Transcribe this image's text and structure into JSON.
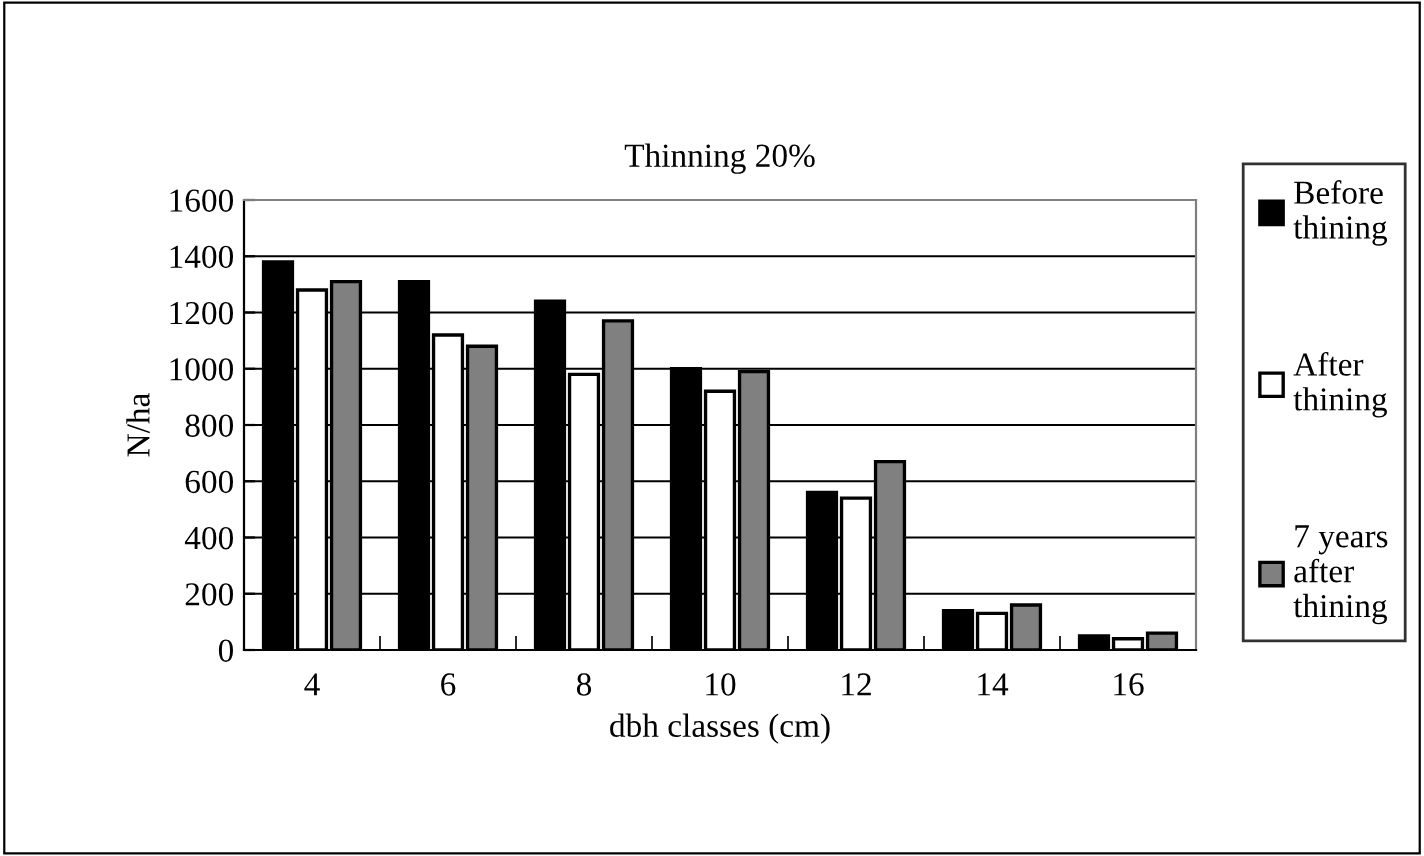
{
  "chart_data": {
    "type": "bar",
    "title": "Thinning 20%",
    "xlabel": "dbh classes (cm)",
    "ylabel": "N/ha",
    "categories": [
      "4",
      "6",
      "8",
      "10",
      "12",
      "14",
      "16"
    ],
    "series": [
      {
        "name": "Before\nthining",
        "color": "#000000",
        "values": [
          1380,
          1310,
          1240,
          1000,
          560,
          140,
          50
        ]
      },
      {
        "name": "After\nthining",
        "color": "#ffffff",
        "values": [
          1280,
          1120,
          980,
          920,
          540,
          130,
          40
        ]
      },
      {
        "name": "7 years\nafter\nthining",
        "color": "#808080",
        "values": [
          1310,
          1080,
          1170,
          990,
          670,
          160,
          60
        ]
      }
    ],
    "ylim": [
      0,
      1600
    ],
    "yticks": [
      0,
      200,
      400,
      600,
      800,
      1000,
      1200,
      1400,
      1600
    ],
    "grid": "y",
    "legend": "right"
  }
}
